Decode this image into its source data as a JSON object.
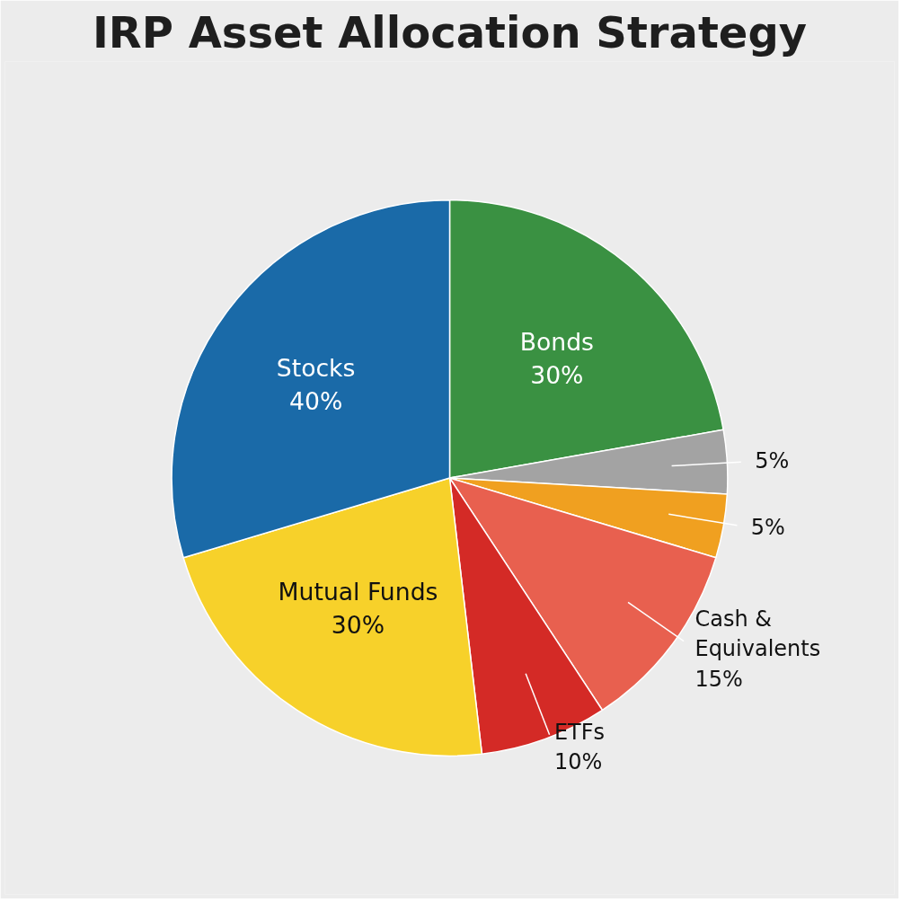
{
  "chart_data": {
    "type": "pie",
    "title": "IRP Asset Allocation Strategy",
    "categories": [
      "Bonds",
      null,
      null,
      "Cash & Equivalents",
      "ETFs",
      "Mutual Funds",
      "Stocks"
    ],
    "values": [
      30,
      5,
      5,
      15,
      10,
      30,
      40
    ],
    "value_labels": [
      "30%",
      "5%",
      "5%",
      "15%",
      "10%",
      "30%",
      "40%"
    ],
    "colors": [
      "#3a9142",
      "#a3a3a3",
      "#f0a020",
      "#e8604f",
      "#d42a26",
      "#f7d12a",
      "#1a6aa8"
    ]
  }
}
